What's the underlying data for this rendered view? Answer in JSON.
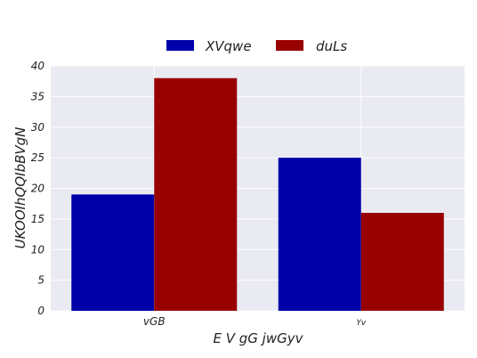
{
  "chart_data": {
    "type": "bar",
    "categories": [
      "vGB",
      "Yv"
    ],
    "series": [
      {
        "name": "XVqwe",
        "color": "#0000a8",
        "values": [
          19,
          25
        ]
      },
      {
        "name": "duLs",
        "color": "#990000",
        "values": [
          38,
          16
        ]
      }
    ],
    "xlabel": "E  V  gG  jwGyv",
    "ylabel": "UKOOIhQQIbBVgN",
    "ylim": [
      0,
      40
    ],
    "yticks": [
      0,
      5,
      10,
      15,
      20,
      25,
      30,
      35,
      40
    ],
    "grid": true,
    "legend_position": "top-center",
    "background_color": "#e9eaf2"
  }
}
